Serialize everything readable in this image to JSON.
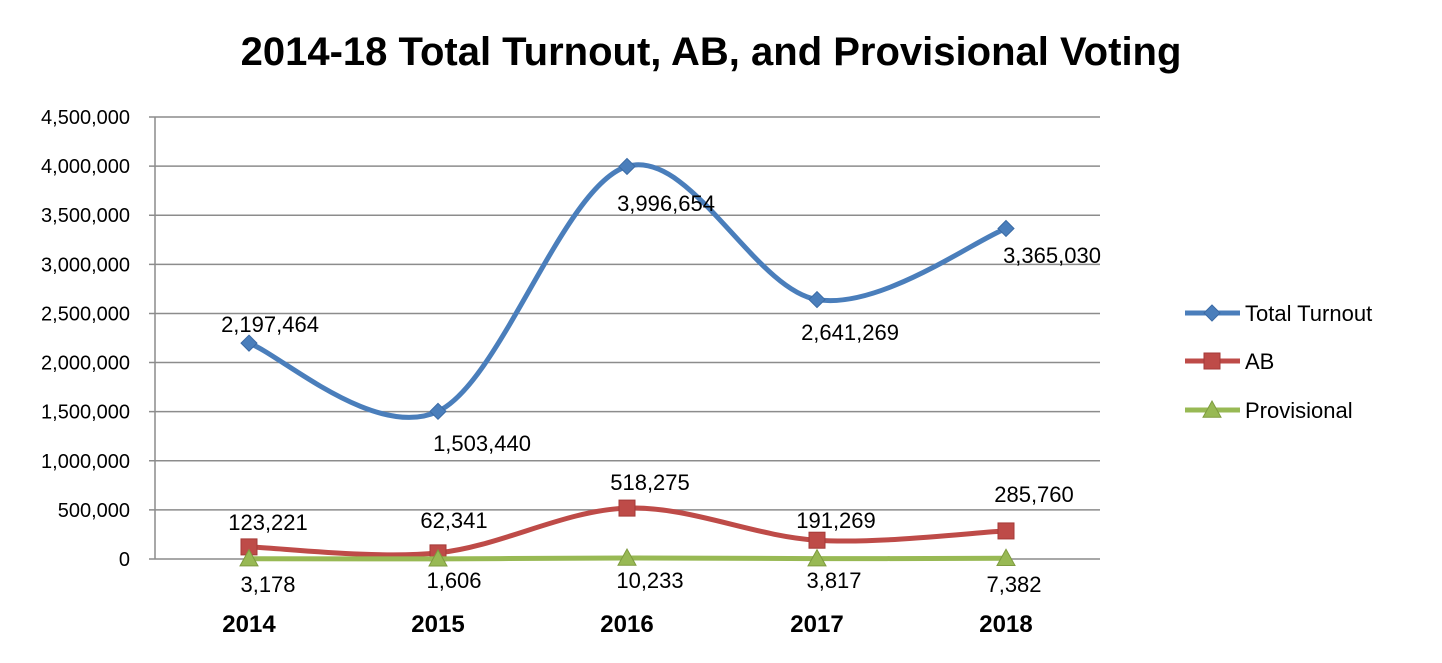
{
  "chart_data": {
    "type": "line",
    "title": "2014-18 Total Turnout, AB, and Provisional Voting",
    "categories": [
      "2014",
      "2015",
      "2016",
      "2017",
      "2018"
    ],
    "ylim": [
      0,
      4500000
    ],
    "y_ticks": [
      0,
      500000,
      1000000,
      1500000,
      2000000,
      2500000,
      3000000,
      3500000,
      4000000,
      4500000
    ],
    "y_tick_labels": [
      "0",
      "500,000",
      "1,000,000",
      "1,500,000",
      "2,000,000",
      "2,500,000",
      "3,000,000",
      "3,500,000",
      "4,000,000",
      "4,500,000"
    ],
    "grid": true,
    "legend_position": "right",
    "series": [
      {
        "name": "Total Turnout",
        "color": "#4a7ebb",
        "marker": "diamond",
        "smooth": true,
        "values": [
          2197464,
          1503440,
          3996654,
          2641269,
          3365030
        ],
        "labels": [
          "2,197,464",
          "1,503,440",
          "3,996,654",
          "2,641,269",
          "3,365,030"
        ]
      },
      {
        "name": "AB",
        "color": "#be4b48",
        "marker": "square",
        "smooth": true,
        "values": [
          123221,
          62341,
          518275,
          191269,
          285760
        ],
        "labels": [
          "123,221",
          "62,341",
          "518,275",
          "191,269",
          "285,760"
        ]
      },
      {
        "name": "Provisional",
        "color": "#98b954",
        "marker": "triangle",
        "smooth": true,
        "values": [
          3178,
          1606,
          10233,
          3817,
          7382
        ],
        "labels": [
          "3,178",
          "1,606",
          "10,233",
          "3,817",
          "7,382"
        ]
      }
    ]
  }
}
